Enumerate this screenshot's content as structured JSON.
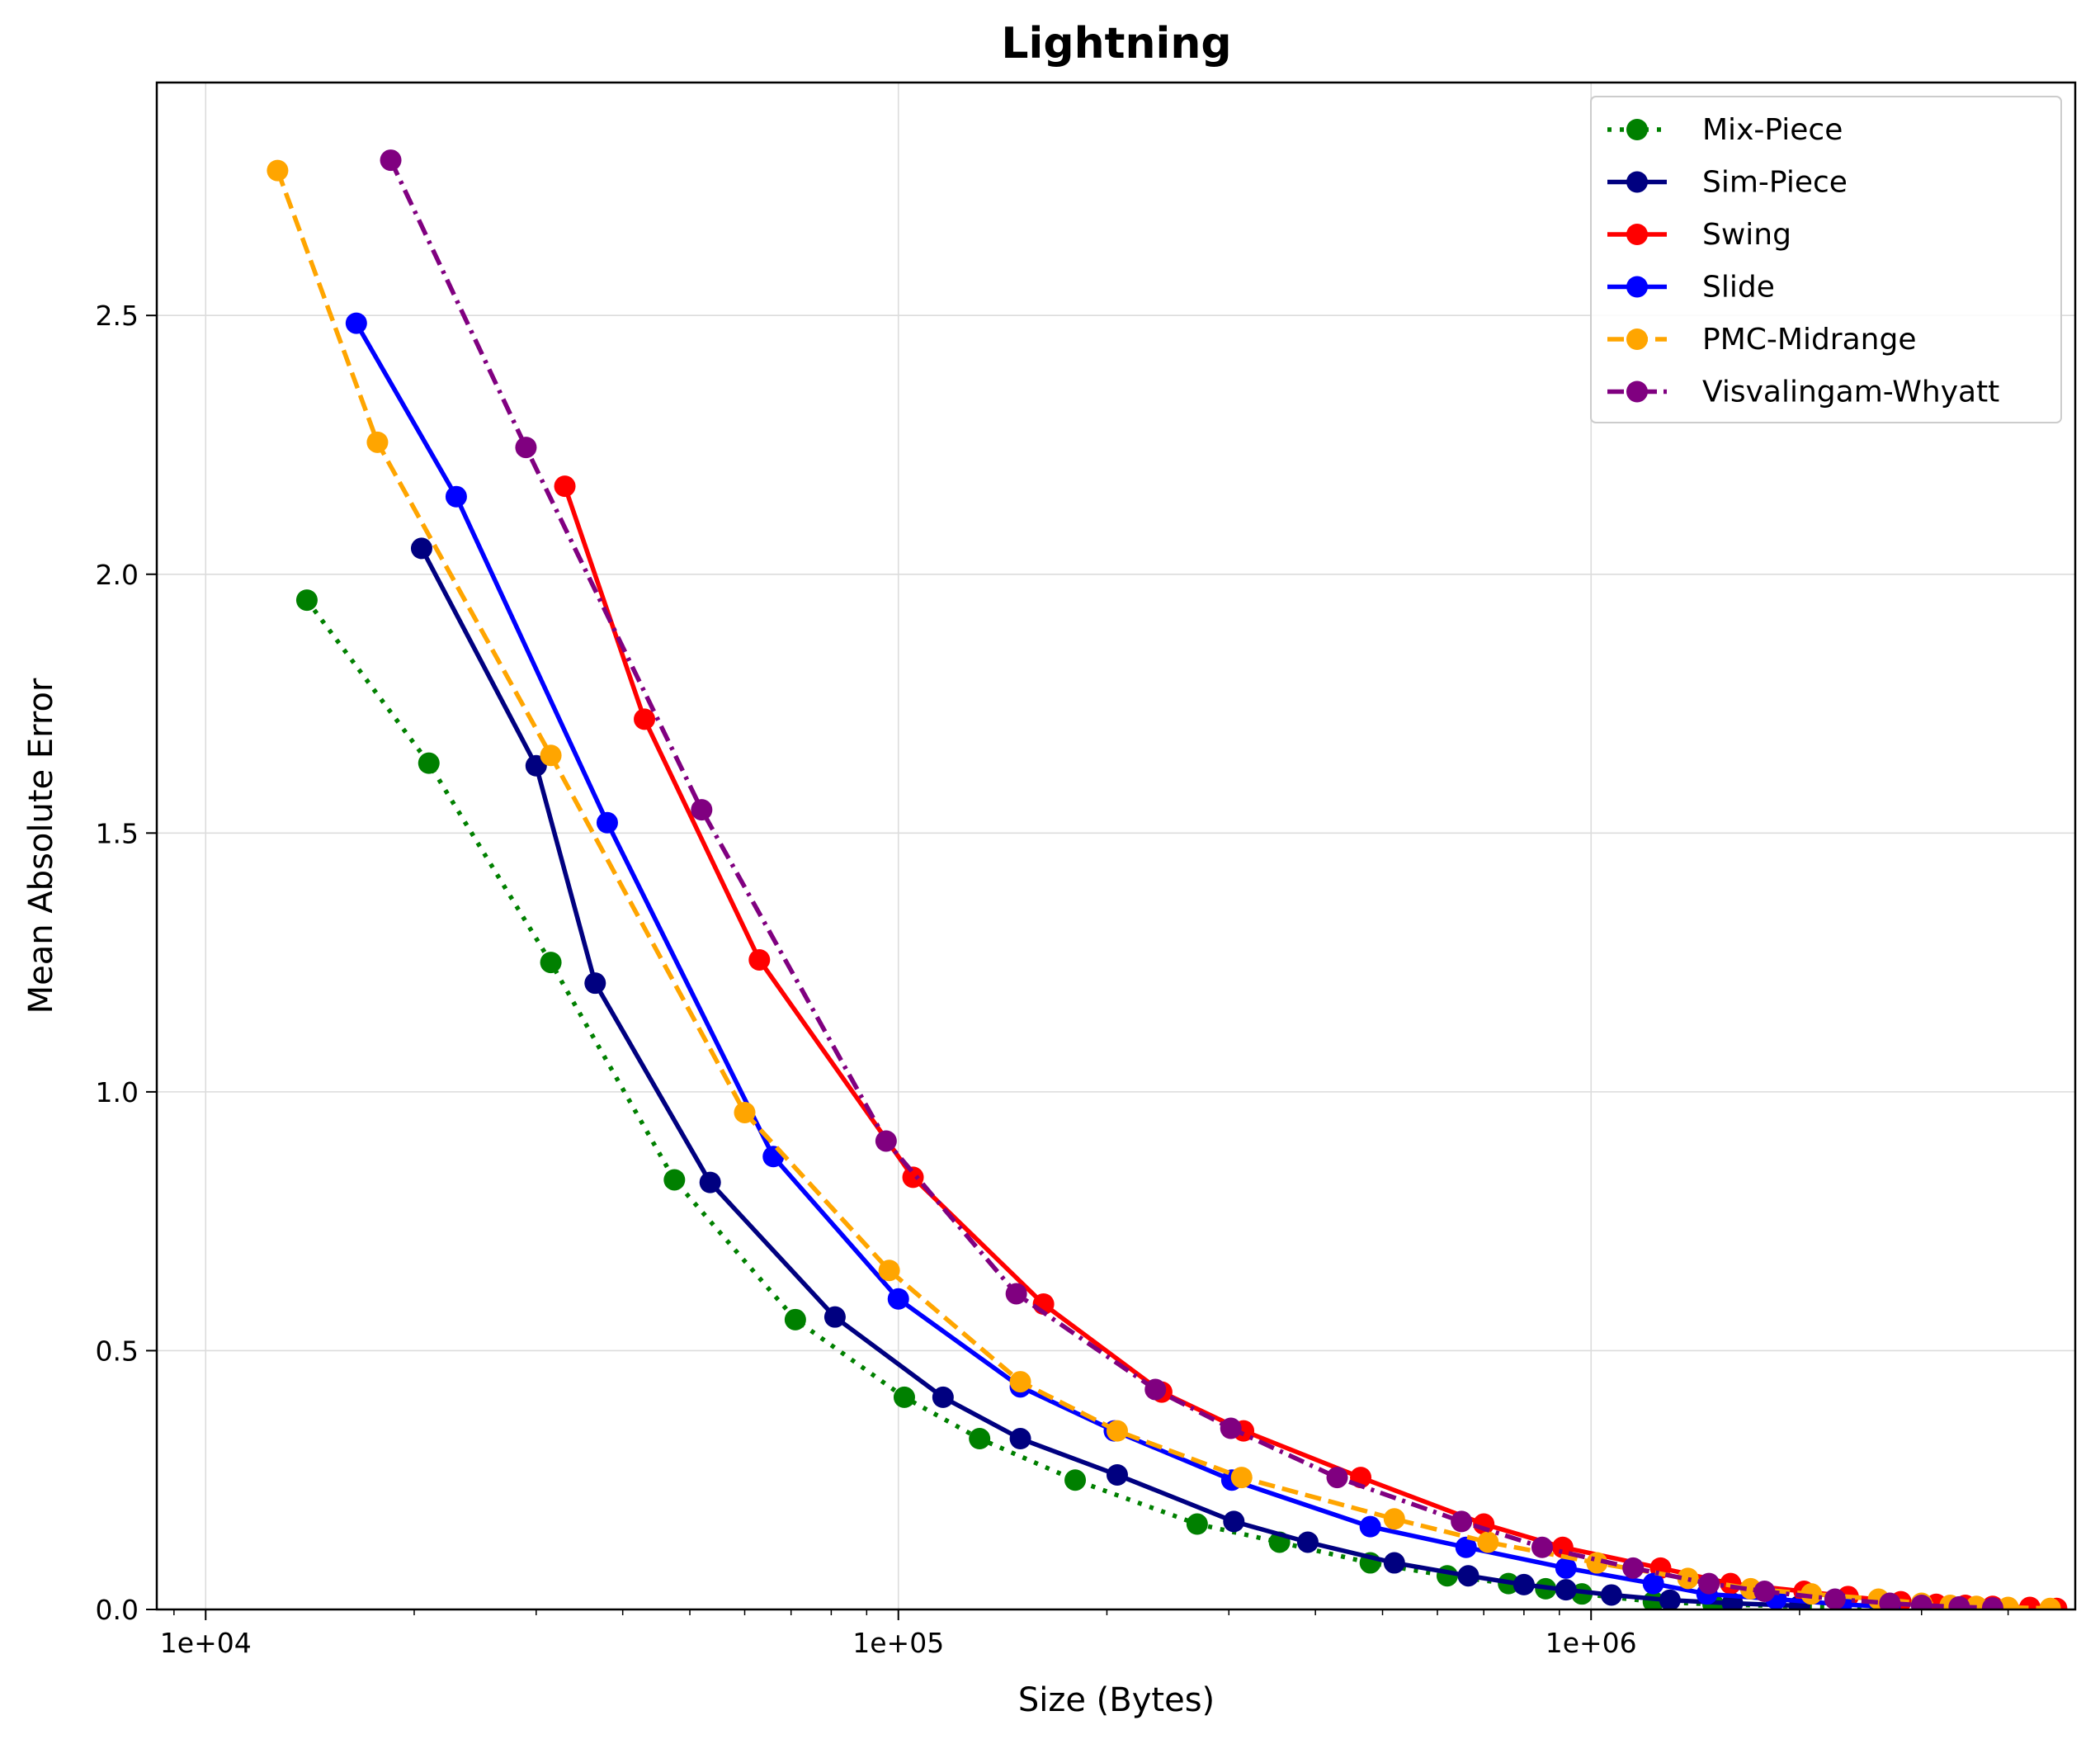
{
  "chart_data": {
    "type": "line",
    "title": "Lightning",
    "xlabel": "Size (Bytes)",
    "ylabel": "Mean Absolute Error",
    "xscale": "log",
    "xlim": [
      8500,
      5000000
    ],
    "ylim": [
      0,
      2.95
    ],
    "xticks": [
      {
        "value": 10000,
        "label": "1e+04"
      },
      {
        "value": 100000,
        "label": "1e+05"
      },
      {
        "value": 1000000,
        "label": "1e+06"
      }
    ],
    "yticks": [
      {
        "value": 0,
        "label": "0.0"
      },
      {
        "value": 0.5,
        "label": "0.5"
      },
      {
        "value": 1.0,
        "label": "1.0"
      },
      {
        "value": 1.5,
        "label": "1.5"
      },
      {
        "value": 2.0,
        "label": "2.0"
      },
      {
        "value": 2.5,
        "label": "2.5"
      }
    ],
    "grid": true,
    "legend_position": "top-right",
    "series": [
      {
        "name": "Mix-Piece",
        "color": "#008000",
        "dash": "dotted",
        "x": [
          14000,
          21000,
          31500,
          47500,
          71000,
          102000,
          131000,
          180000,
          270000,
          355000,
          480000,
          620000,
          760000,
          860000,
          970000,
          1230000,
          1500000,
          2000000,
          2700000
        ],
        "y": [
          1.95,
          1.635,
          1.25,
          0.83,
          0.56,
          0.41,
          0.33,
          0.25,
          0.165,
          0.13,
          0.09,
          0.065,
          0.05,
          0.04,
          0.03,
          0.015,
          0.01,
          0.006,
          0.003
        ]
      },
      {
        "name": "Sim-Piece",
        "color": "#000080",
        "dash": "solid",
        "x": [
          20500,
          30000,
          36500,
          53500,
          81000,
          116000,
          150000,
          207000,
          305000,
          390000,
          520000,
          665000,
          800000,
          920000,
          1070000,
          1300000,
          1600000,
          2000000
        ],
        "y": [
          2.05,
          1.63,
          1.21,
          0.825,
          0.565,
          0.41,
          0.33,
          0.26,
          0.17,
          0.13,
          0.09,
          0.065,
          0.048,
          0.038,
          0.028,
          0.018,
          0.012,
          0.007
        ]
      },
      {
        "name": "Swing",
        "color": "#ff0000",
        "dash": "solid",
        "x": [
          33000,
          43000,
          63000,
          105000,
          162000,
          240000,
          315000,
          465000,
          700000,
          910000,
          1260000,
          1590000,
          2030000,
          2350000,
          2800000,
          3150000,
          3470000,
          3800000,
          4300000,
          4700000
        ],
        "y": [
          2.17,
          1.72,
          1.255,
          0.835,
          0.59,
          0.42,
          0.345,
          0.255,
          0.165,
          0.12,
          0.08,
          0.05,
          0.035,
          0.025,
          0.015,
          0.01,
          0.008,
          0.006,
          0.004,
          0.002
        ]
      },
      {
        "name": "Slide",
        "color": "#0000ff",
        "dash": "solid",
        "x": [
          16500,
          23000,
          38000,
          66000,
          100000,
          150000,
          205000,
          303000,
          480000,
          660000,
          920000,
          1230000,
          1470000,
          1850000,
          2300000,
          2700000
        ],
        "y": [
          2.485,
          2.15,
          1.52,
          0.875,
          0.6,
          0.43,
          0.345,
          0.25,
          0.16,
          0.12,
          0.08,
          0.05,
          0.03,
          0.02,
          0.01,
          0.005
        ]
      },
      {
        "name": "PMC-Midrange",
        "color": "#ffa500",
        "dash": "dashed",
        "x": [
          12700,
          17700,
          31500,
          60000,
          97000,
          150000,
          207000,
          313000,
          520000,
          710000,
          1020000,
          1380000,
          1700000,
          2080000,
          2600000,
          3000000,
          3300000,
          3600000,
          4000000,
          4600000
        ],
        "y": [
          2.78,
          2.255,
          1.65,
          0.96,
          0.655,
          0.44,
          0.345,
          0.255,
          0.175,
          0.13,
          0.09,
          0.06,
          0.04,
          0.03,
          0.02,
          0.012,
          0.008,
          0.006,
          0.004,
          0.002
        ]
      },
      {
        "name": "Visvalingam-Whyatt",
        "color": "#800080",
        "dash": "dashdot",
        "x": [
          18500,
          29000,
          52000,
          96000,
          148000,
          235000,
          302000,
          430000,
          650000,
          850000,
          1150000,
          1480000,
          1780000,
          2250000,
          2700000,
          3000000,
          3400000,
          3800000
        ],
        "y": [
          2.8,
          2.245,
          1.545,
          0.905,
          0.61,
          0.425,
          0.35,
          0.255,
          0.17,
          0.12,
          0.08,
          0.05,
          0.035,
          0.02,
          0.012,
          0.008,
          0.005,
          0.003
        ]
      }
    ]
  }
}
